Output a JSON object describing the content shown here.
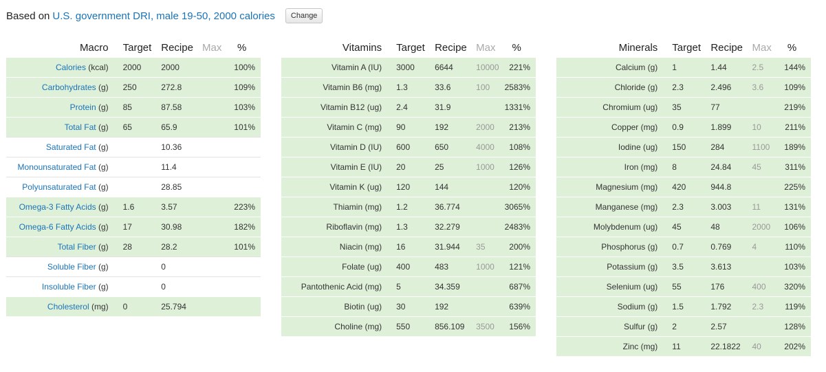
{
  "header": {
    "prefix": "Based on",
    "link": "U.S. government DRI, male 19-50, 2000 calories",
    "change_button": "Change"
  },
  "columns": {
    "target": "Target",
    "recipe": "Recipe",
    "max": "Max",
    "pct": "%"
  },
  "tables": [
    {
      "title": "Macro",
      "rows": [
        {
          "name": "Calories",
          "unit": " (kcal)",
          "link": true,
          "target": "2000",
          "recipe": "2000",
          "max": "",
          "pct": "100%",
          "met": true
        },
        {
          "name": "Carbohydrates",
          "unit": " (g)",
          "link": true,
          "target": "250",
          "recipe": "272.8",
          "max": "",
          "pct": "109%",
          "met": true
        },
        {
          "name": "Protein",
          "unit": " (g)",
          "link": true,
          "target": "85",
          "recipe": "87.58",
          "max": "",
          "pct": "103%",
          "met": true
        },
        {
          "name": "Total Fat",
          "unit": " (g)",
          "link": true,
          "target": "65",
          "recipe": "65.9",
          "max": "",
          "pct": "101%",
          "met": true
        },
        {
          "name": "Saturated Fat",
          "unit": " (g)",
          "link": true,
          "target": "",
          "recipe": "10.36",
          "max": "",
          "pct": "",
          "met": false
        },
        {
          "name": "Monounsaturated Fat",
          "unit": " (g)",
          "link": true,
          "target": "",
          "recipe": "11.4",
          "max": "",
          "pct": "",
          "met": false
        },
        {
          "name": "Polyunsaturated Fat",
          "unit": " (g)",
          "link": true,
          "target": "",
          "recipe": "28.85",
          "max": "",
          "pct": "",
          "met": false
        },
        {
          "name": "Omega-3 Fatty Acids",
          "unit": " (g)",
          "link": true,
          "target": "1.6",
          "recipe": "3.57",
          "max": "",
          "pct": "223%",
          "met": true
        },
        {
          "name": "Omega-6 Fatty Acids",
          "unit": " (g)",
          "link": true,
          "target": "17",
          "recipe": "30.98",
          "max": "",
          "pct": "182%",
          "met": true
        },
        {
          "name": "Total Fiber",
          "unit": " (g)",
          "link": true,
          "target": "28",
          "recipe": "28.2",
          "max": "",
          "pct": "101%",
          "met": true
        },
        {
          "name": "Soluble Fiber",
          "unit": " (g)",
          "link": true,
          "target": "",
          "recipe": "0",
          "max": "",
          "pct": "",
          "met": false
        },
        {
          "name": "Insoluble Fiber",
          "unit": " (g)",
          "link": true,
          "target": "",
          "recipe": "0",
          "max": "",
          "pct": "",
          "met": false
        },
        {
          "name": "Cholesterol",
          "unit": " (mg)",
          "link": true,
          "target": "0",
          "recipe": "25.794",
          "max": "",
          "pct": "",
          "met": true
        }
      ]
    },
    {
      "title": "Vitamins",
      "rows": [
        {
          "name": "Vitamin A (IU)",
          "unit": "",
          "link": false,
          "target": "3000",
          "recipe": "6644",
          "max": "10000",
          "pct": "221%",
          "met": true
        },
        {
          "name": "Vitamin B6 (mg)",
          "unit": "",
          "link": false,
          "target": "1.3",
          "recipe": "33.6",
          "max": "100",
          "pct": "2583%",
          "met": true
        },
        {
          "name": "Vitamin B12 (ug)",
          "unit": "",
          "link": false,
          "target": "2.4",
          "recipe": "31.9",
          "max": "",
          "pct": "1331%",
          "met": true
        },
        {
          "name": "Vitamin C (mg)",
          "unit": "",
          "link": false,
          "target": "90",
          "recipe": "192",
          "max": "2000",
          "pct": "213%",
          "met": true
        },
        {
          "name": "Vitamin D (IU)",
          "unit": "",
          "link": false,
          "target": "600",
          "recipe": "650",
          "max": "4000",
          "pct": "108%",
          "met": true
        },
        {
          "name": "Vitamin E (IU)",
          "unit": "",
          "link": false,
          "target": "20",
          "recipe": "25",
          "max": "1000",
          "pct": "126%",
          "met": true
        },
        {
          "name": "Vitamin K (ug)",
          "unit": "",
          "link": false,
          "target": "120",
          "recipe": "144",
          "max": "",
          "pct": "120%",
          "met": true
        },
        {
          "name": "Thiamin (mg)",
          "unit": "",
          "link": false,
          "target": "1.2",
          "recipe": "36.774",
          "max": "",
          "pct": "3065%",
          "met": true
        },
        {
          "name": "Riboflavin (mg)",
          "unit": "",
          "link": false,
          "target": "1.3",
          "recipe": "32.279",
          "max": "",
          "pct": "2483%",
          "met": true
        },
        {
          "name": "Niacin (mg)",
          "unit": "",
          "link": false,
          "target": "16",
          "recipe": "31.944",
          "max": "35",
          "pct": "200%",
          "met": true
        },
        {
          "name": "Folate (ug)",
          "unit": "",
          "link": false,
          "target": "400",
          "recipe": "483",
          "max": "1000",
          "pct": "121%",
          "met": true
        },
        {
          "name": "Pantothenic Acid (mg)",
          "unit": "",
          "link": false,
          "target": "5",
          "recipe": "34.359",
          "max": "",
          "pct": "687%",
          "met": true
        },
        {
          "name": "Biotin (ug)",
          "unit": "",
          "link": false,
          "target": "30",
          "recipe": "192",
          "max": "",
          "pct": "639%",
          "met": true
        },
        {
          "name": "Choline (mg)",
          "unit": "",
          "link": false,
          "target": "550",
          "recipe": "856.109",
          "max": "3500",
          "pct": "156%",
          "met": true
        }
      ]
    },
    {
      "title": "Minerals",
      "rows": [
        {
          "name": "Calcium (g)",
          "unit": "",
          "link": false,
          "target": "1",
          "recipe": "1.44",
          "max": "2.5",
          "pct": "144%",
          "met": true
        },
        {
          "name": "Chloride (g)",
          "unit": "",
          "link": false,
          "target": "2.3",
          "recipe": "2.496",
          "max": "3.6",
          "pct": "109%",
          "met": true
        },
        {
          "name": "Chromium (ug)",
          "unit": "",
          "link": false,
          "target": "35",
          "recipe": "77",
          "max": "",
          "pct": "219%",
          "met": true
        },
        {
          "name": "Copper (mg)",
          "unit": "",
          "link": false,
          "target": "0.9",
          "recipe": "1.899",
          "max": "10",
          "pct": "211%",
          "met": true
        },
        {
          "name": "Iodine (ug)",
          "unit": "",
          "link": false,
          "target": "150",
          "recipe": "284",
          "max": "1100",
          "pct": "189%",
          "met": true
        },
        {
          "name": "Iron (mg)",
          "unit": "",
          "link": false,
          "target": "8",
          "recipe": "24.84",
          "max": "45",
          "pct": "311%",
          "met": true
        },
        {
          "name": "Magnesium (mg)",
          "unit": "",
          "link": false,
          "target": "420",
          "recipe": "944.8",
          "max": "",
          "pct": "225%",
          "met": true
        },
        {
          "name": "Manganese (mg)",
          "unit": "",
          "link": false,
          "target": "2.3",
          "recipe": "3.003",
          "max": "11",
          "pct": "131%",
          "met": true
        },
        {
          "name": "Molybdenum (ug)",
          "unit": "",
          "link": false,
          "target": "45",
          "recipe": "48",
          "max": "2000",
          "pct": "106%",
          "met": true
        },
        {
          "name": "Phosphorus (g)",
          "unit": "",
          "link": false,
          "target": "0.7",
          "recipe": "0.769",
          "max": "4",
          "pct": "110%",
          "met": true
        },
        {
          "name": "Potassium (g)",
          "unit": "",
          "link": false,
          "target": "3.5",
          "recipe": "3.613",
          "max": "",
          "pct": "103%",
          "met": true
        },
        {
          "name": "Selenium (ug)",
          "unit": "",
          "link": false,
          "target": "55",
          "recipe": "176",
          "max": "400",
          "pct": "320%",
          "met": true
        },
        {
          "name": "Sodium (g)",
          "unit": "",
          "link": false,
          "target": "1.5",
          "recipe": "1.792",
          "max": "2.3",
          "pct": "119%",
          "met": true
        },
        {
          "name": "Sulfur (g)",
          "unit": "",
          "link": false,
          "target": "2",
          "recipe": "2.57",
          "max": "",
          "pct": "128%",
          "met": true
        },
        {
          "name": "Zinc (mg)",
          "unit": "",
          "link": false,
          "target": "11",
          "recipe": "22.1822",
          "max": "40",
          "pct": "202%",
          "met": true
        }
      ]
    }
  ]
}
